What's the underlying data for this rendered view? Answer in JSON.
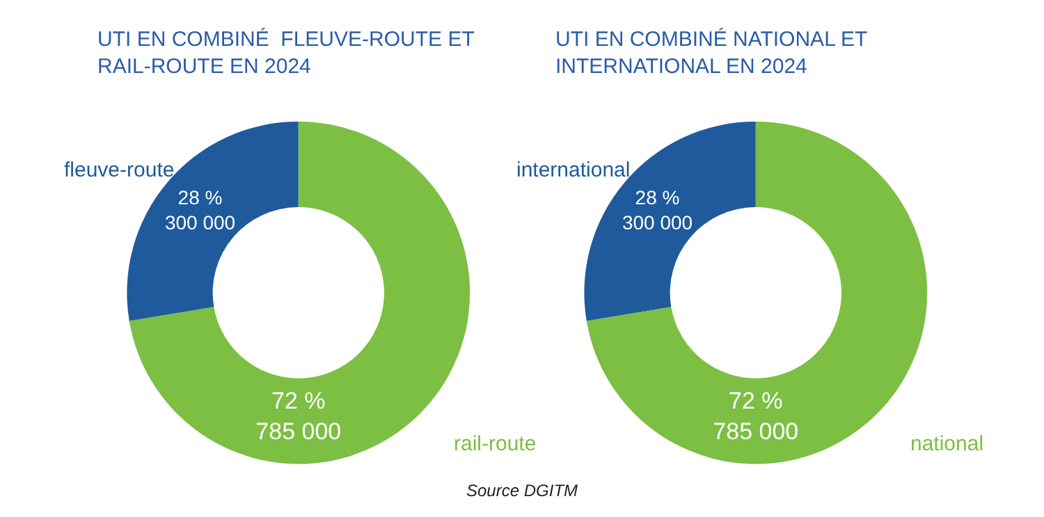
{
  "chart_data": [
    {
      "type": "donut",
      "title": "UTI EN COMBINÉ  FLEUVE-ROUTE ET\nRAIL-ROUTE EN 2024",
      "categories": [
        "fleuve-route",
        "rail-route"
      ],
      "values": [
        300000,
        785000
      ],
      "colors": [
        "#1f5a9c",
        "#7cbf43"
      ],
      "value_labels": [
        "28 %\n300 000",
        "72 %\n785 000"
      ],
      "legend": false,
      "annotations": [
        "Source DGITM"
      ]
    },
    {
      "type": "donut",
      "title": "UTI EN COMBINÉ NATIONAL ET\nINTERNATIONAL EN 2024",
      "categories": [
        "international",
        "national"
      ],
      "values": [
        300000,
        785000
      ],
      "colors": [
        "#1f5a9c",
        "#7cbf43"
      ],
      "value_labels": [
        "28 %\n300 000",
        "72 %\n785 000"
      ],
      "legend": false
    }
  ]
}
